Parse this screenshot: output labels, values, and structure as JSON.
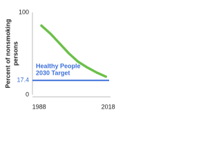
{
  "chart_data": {
    "type": "line",
    "ylabel": [
      "Percent of nonsmoking",
      "persons"
    ],
    "x": [
      1989,
      1993,
      1997,
      2001,
      2005,
      2009,
      2013,
      2017
    ],
    "series": [
      {
        "color": "#6cc04a",
        "values": [
          84,
          74,
          62,
          50,
          40,
          33,
          27,
          22
        ]
      }
    ],
    "xlim": [
      1986,
      2019
    ],
    "xticks": [
      1988,
      2018
    ],
    "ylim": [
      0,
      100
    ],
    "yticks": [
      0,
      100
    ],
    "target": {
      "value": 17.4,
      "label": [
        "Healthy People",
        "2030 Target"
      ],
      "color": "#3b6fd9"
    }
  }
}
